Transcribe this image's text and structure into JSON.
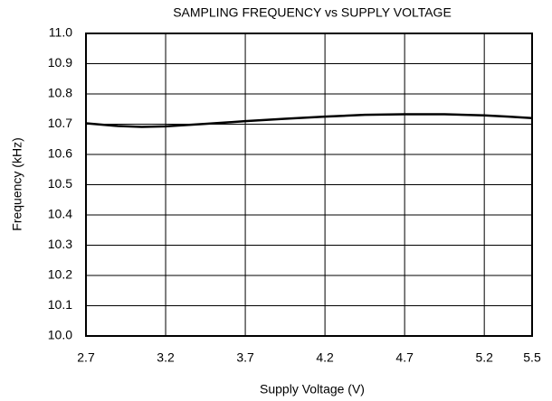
{
  "chart_data": {
    "type": "line",
    "title": "SAMPLING FREQUENCY vs SUPPLY VOLTAGE",
    "x_label": "Supply Voltage (V)",
    "y_label": "Frequency (kHz)",
    "x": [
      2.7,
      2.9,
      3.05,
      3.2,
      3.45,
      3.7,
      3.95,
      4.2,
      4.45,
      4.7,
      4.95,
      5.2,
      5.35,
      5.5
    ],
    "series": [
      {
        "name": "Frequency",
        "color": "#000000",
        "values": [
          10.703,
          10.694,
          10.691,
          10.693,
          10.701,
          10.71,
          10.718,
          10.725,
          10.731,
          10.733,
          10.733,
          10.729,
          10.725,
          10.72
        ]
      }
    ],
    "xlim": [
      2.7,
      5.5
    ],
    "xticks": [
      2.7,
      3.2,
      3.7,
      4.2,
      4.7,
      5.2,
      5.5
    ],
    "ylim": [
      10.0,
      11.0
    ],
    "yticks": [
      {
        "value": 10,
        "label": "10.0"
      },
      10.1,
      10.2,
      10.3,
      10.4,
      10.5,
      10.6,
      10.7,
      10.8,
      10.9,
      {
        "value": 11,
        "label": "11.0"
      }
    ],
    "grid": true
  }
}
